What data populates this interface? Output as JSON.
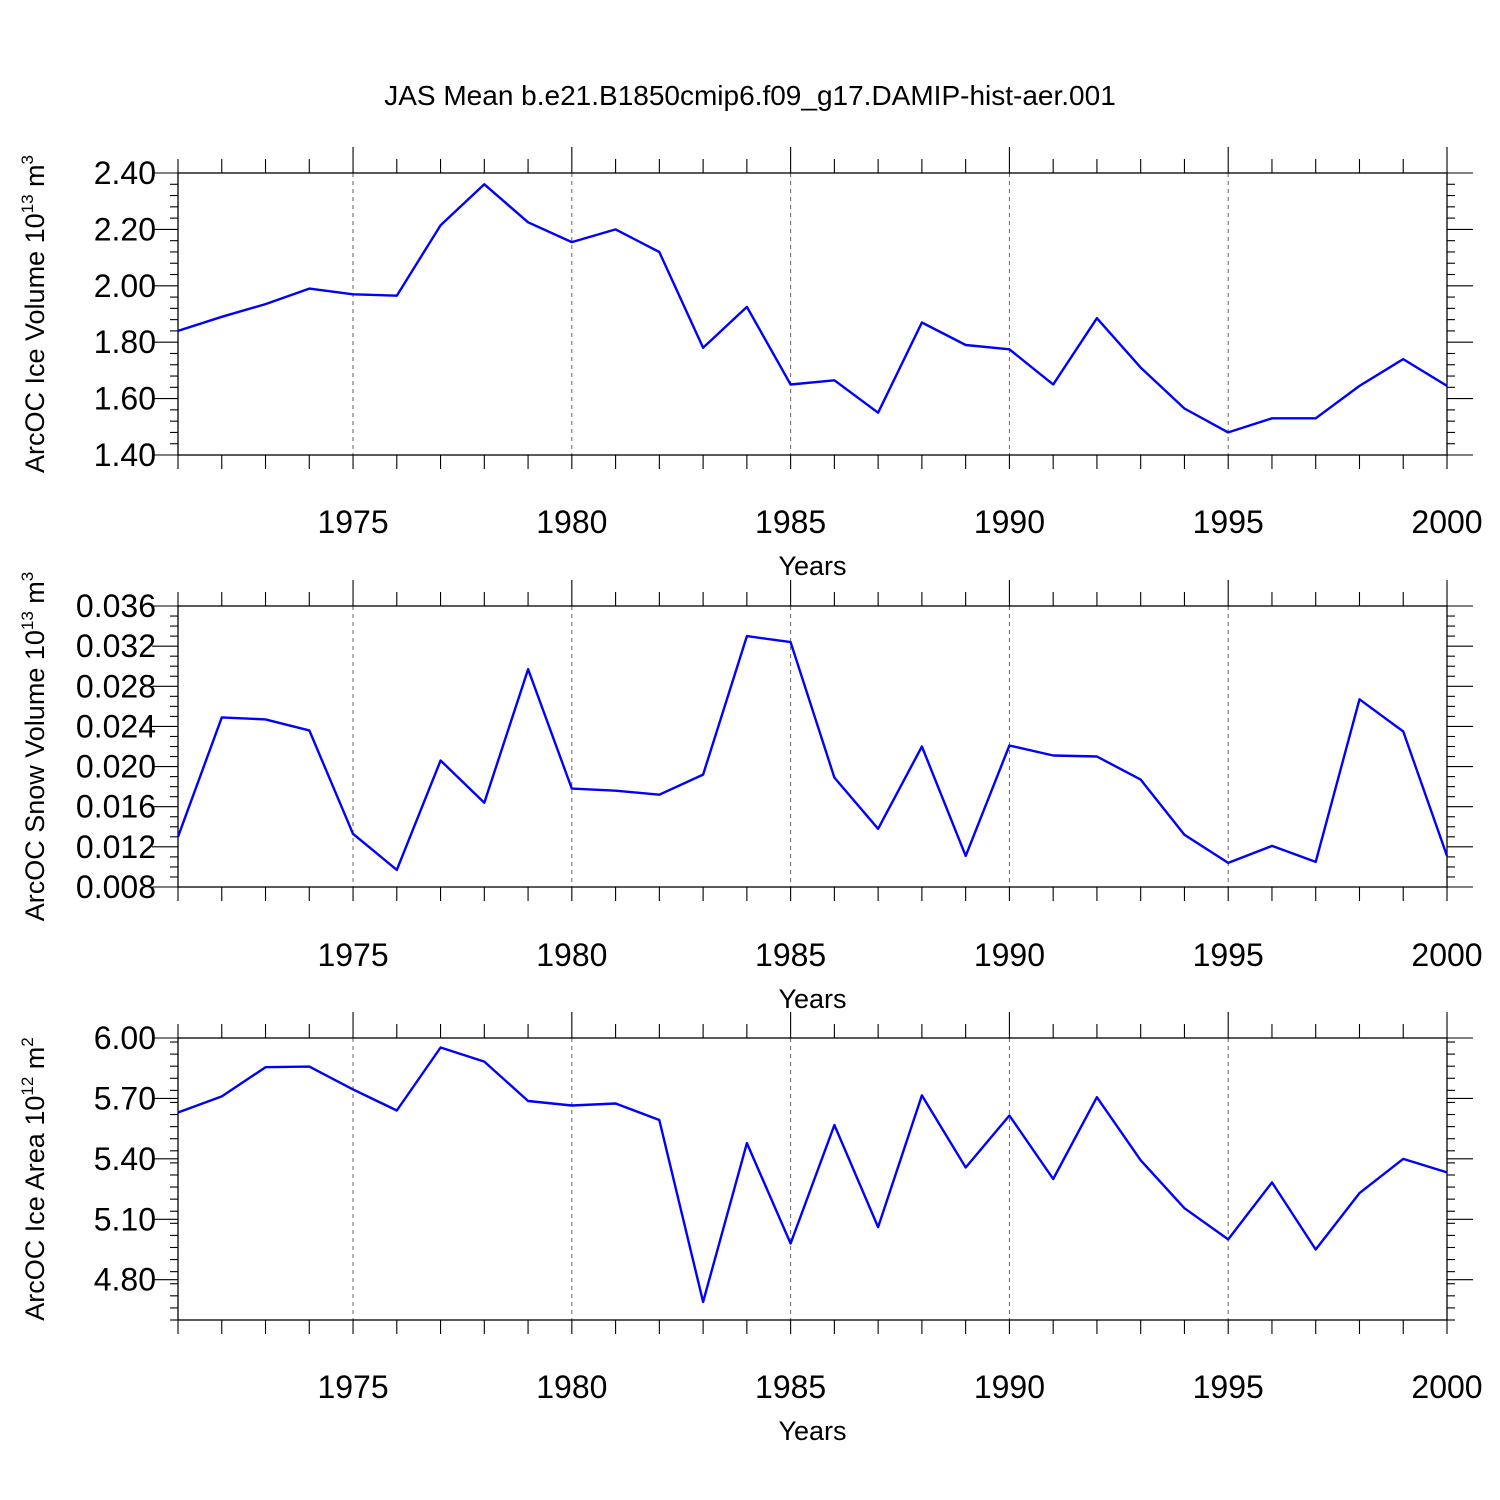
{
  "figure_title": "JAS Mean b.e21.B1850cmip6.f09_g17.DAMIP-hist-aer.001",
  "chart_data": [
    {
      "type": "line",
      "title": "",
      "xlabel": "Years",
      "ylabel": "ArcOC Ice Volume 10",
      "ylabel_sup": "13",
      "ylabel_tail": " m",
      "ylabel_tail_sup": "3",
      "xlim": [
        1971,
        2000
      ],
      "ylim": [
        1.4,
        2.4
      ],
      "yticks": [
        1.4,
        1.6,
        1.8,
        2.0,
        2.2,
        2.4
      ],
      "ytick_labels": [
        "1.40",
        "1.60",
        "1.80",
        "2.00",
        "2.20",
        "2.40"
      ],
      "ytick_minor_step": 0.04,
      "xticks": [
        1975,
        1980,
        1985,
        1990,
        1995,
        2000
      ],
      "xtick_labels": [
        "1975",
        "1980",
        "1985",
        "1990",
        "1995",
        "2000"
      ],
      "grid": "vertical dashed at major x ticks",
      "line_color": "#0000ff",
      "x": [
        1971,
        1972,
        1973,
        1974,
        1975,
        1976,
        1977,
        1978,
        1979,
        1980,
        1981,
        1982,
        1983,
        1984,
        1985,
        1986,
        1987,
        1988,
        1989,
        1990,
        1991,
        1992,
        1993,
        1994,
        1995,
        1996,
        1997,
        1998,
        1999,
        2000
      ],
      "values": [
        1.84,
        1.89,
        1.935,
        1.99,
        1.97,
        1.965,
        2.215,
        2.36,
        2.225,
        2.155,
        2.2,
        2.12,
        1.78,
        1.925,
        1.65,
        1.665,
        1.55,
        1.87,
        1.79,
        1.775,
        1.65,
        1.885,
        1.71,
        1.565,
        1.48,
        1.53,
        1.53,
        1.645,
        1.74,
        1.645
      ]
    },
    {
      "type": "line",
      "title": "",
      "xlabel": "Years",
      "ylabel": "ArcOC Snow Volume 10",
      "ylabel_sup": "13",
      "ylabel_tail": " m",
      "ylabel_tail_sup": "3",
      "xlim": [
        1971,
        2000
      ],
      "ylim": [
        0.008,
        0.036
      ],
      "yticks": [
        0.008,
        0.012,
        0.016,
        0.02,
        0.024,
        0.028,
        0.032,
        0.036
      ],
      "ytick_labels": [
        "0.008",
        "0.012",
        "0.016",
        "0.020",
        "0.024",
        "0.028",
        "0.032",
        "0.036"
      ],
      "ytick_minor_step": 0.001,
      "xticks": [
        1975,
        1980,
        1985,
        1990,
        1995,
        2000
      ],
      "xtick_labels": [
        "1975",
        "1980",
        "1985",
        "1990",
        "1995",
        "2000"
      ],
      "grid": "vertical dashed at major x ticks",
      "line_color": "#0000ff",
      "x": [
        1971,
        1972,
        1973,
        1974,
        1975,
        1976,
        1977,
        1978,
        1979,
        1980,
        1981,
        1982,
        1983,
        1984,
        1985,
        1986,
        1987,
        1988,
        1989,
        1990,
        1991,
        1992,
        1993,
        1994,
        1995,
        1996,
        1997,
        1998,
        1999,
        2000
      ],
      "values": [
        0.013,
        0.0249,
        0.0247,
        0.0236,
        0.0133,
        0.0097,
        0.0206,
        0.0164,
        0.0297,
        0.0178,
        0.0176,
        0.0172,
        0.0192,
        0.033,
        0.0324,
        0.0189,
        0.0138,
        0.022,
        0.0111,
        0.0221,
        0.0211,
        0.021,
        0.0187,
        0.0132,
        0.0104,
        0.0121,
        0.0105,
        0.0267,
        0.0235,
        0.0111
      ]
    },
    {
      "type": "line",
      "title": "",
      "xlabel": "Years",
      "ylabel": "ArcOC Ice Area 10",
      "ylabel_sup": "12",
      "ylabel_tail": " m",
      "ylabel_tail_sup": "2",
      "xlim": [
        1971,
        2000
      ],
      "ylim": [
        4.6,
        6.0
      ],
      "yticks": [
        4.8,
        5.1,
        5.4,
        5.7,
        6.0
      ],
      "ytick_labels": [
        "4.80",
        "5.10",
        "5.40",
        "5.70",
        "6.00"
      ],
      "ytick_minor_step": 0.06,
      "xticks": [
        1975,
        1980,
        1985,
        1990,
        1995,
        2000
      ],
      "xtick_labels": [
        "1975",
        "1980",
        "1985",
        "1990",
        "1995",
        "2000"
      ],
      "grid": "vertical dashed at major x ticks",
      "line_color": "#0000ff",
      "x": [
        1971,
        1972,
        1973,
        1974,
        1975,
        1976,
        1977,
        1978,
        1979,
        1980,
        1981,
        1982,
        1983,
        1984,
        1985,
        1986,
        1987,
        1988,
        1989,
        1990,
        1991,
        1992,
        1993,
        1994,
        1995,
        1996,
        1997,
        1998,
        1999,
        2000
      ],
      "values": [
        5.63,
        5.71,
        5.855,
        5.858,
        5.745,
        5.64,
        5.953,
        5.883,
        5.687,
        5.665,
        5.675,
        5.593,
        4.69,
        5.478,
        4.98,
        5.568,
        5.061,
        5.715,
        5.357,
        5.615,
        5.3,
        5.706,
        5.393,
        5.155,
        5.0,
        5.283,
        4.95,
        5.23,
        5.4,
        5.333
      ]
    }
  ]
}
